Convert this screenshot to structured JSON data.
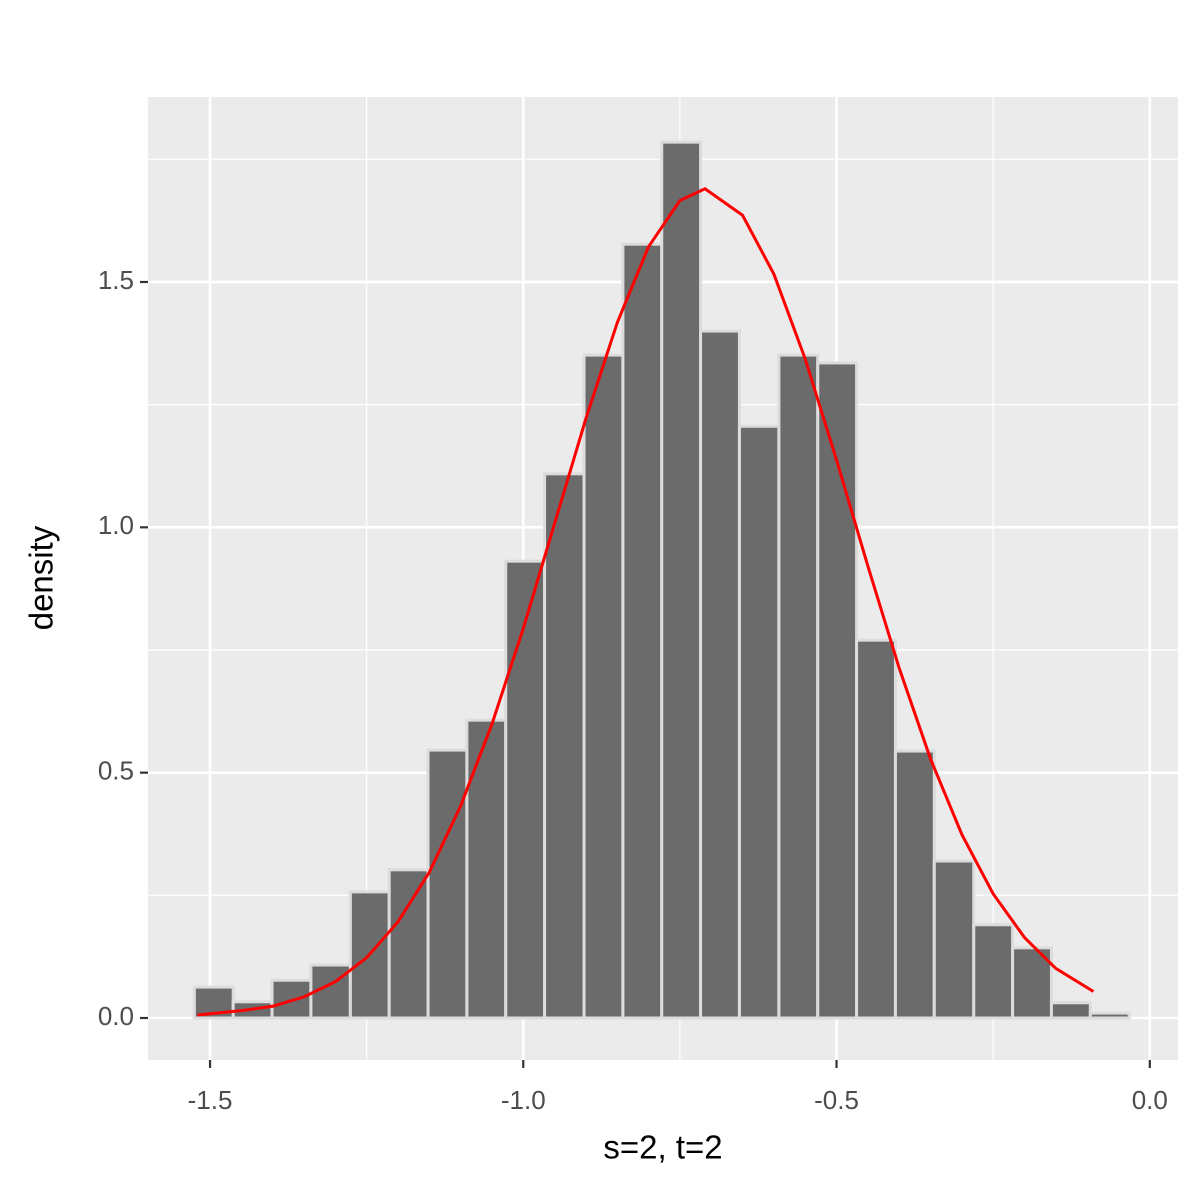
{
  "chart_data": {
    "type": "histogram",
    "x_label": "s=2, t=2",
    "y_label": "density",
    "bins": [
      -1.525,
      -1.463,
      -1.401,
      -1.339,
      -1.276,
      -1.214,
      -1.152,
      -1.09,
      -1.028,
      -0.966,
      -0.903,
      -0.841,
      -0.779,
      -0.717,
      -0.655,
      -0.592,
      -0.53,
      -0.468,
      -0.406,
      -0.344,
      -0.281,
      -0.219,
      -0.157,
      -0.095,
      -0.033
    ],
    "values": [
      0.063,
      0.033,
      0.077,
      0.108,
      0.257,
      0.302,
      0.546,
      0.607,
      0.931,
      1.109,
      1.351,
      1.577,
      1.785,
      1.4,
      1.206,
      1.351,
      1.335,
      0.77,
      0.544,
      0.32,
      0.19,
      0.143,
      0.031,
      0.01
    ],
    "color": "#6b6b6b",
    "edge_color": "#dcdcdc",
    "density_curve": {
      "color": "#ff0000",
      "x": [
        -1.52,
        -1.45,
        -1.4,
        -1.35,
        -1.3,
        -1.25,
        -1.2,
        -1.15,
        -1.1,
        -1.05,
        -1.0,
        -0.95,
        -0.9,
        -0.85,
        -0.8,
        -0.75,
        -0.71,
        -0.65,
        -0.6,
        -0.55,
        -0.5,
        -0.45,
        -0.4,
        -0.35,
        -0.3,
        -0.25,
        -0.2,
        -0.15,
        -0.09
      ],
      "y": [
        0.006,
        0.015,
        0.024,
        0.043,
        0.074,
        0.123,
        0.196,
        0.297,
        0.432,
        0.599,
        0.794,
        1.008,
        1.222,
        1.417,
        1.572,
        1.666,
        1.69,
        1.636,
        1.516,
        1.343,
        1.137,
        0.921,
        0.713,
        0.528,
        0.374,
        0.253,
        0.164,
        0.101,
        0.054
      ]
    },
    "xlim": [
      -1.599,
      0.045
    ],
    "ylim": [
      -0.0856,
      1.877
    ],
    "xticks": [
      -1.5,
      {
        "value": -1.0,
        "label": "-1.0"
      },
      -0.5,
      {
        "value": 0.0,
        "label": "0.0"
      }
    ],
    "yticks": [
      {
        "value": 0.0,
        "label": "0.0"
      },
      0.5,
      {
        "value": 1.0,
        "label": "1.0"
      },
      1.5
    ],
    "grid": true
  }
}
